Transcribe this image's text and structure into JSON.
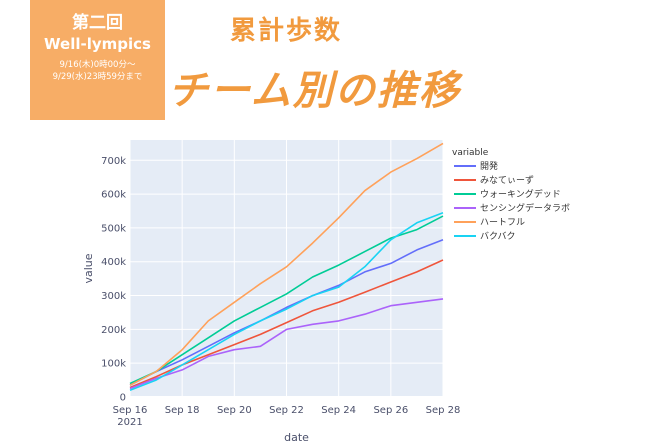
{
  "badge": {
    "title": "第二回",
    "subtitle": "Well-lympics",
    "date_line1": "9/16(木)0時00分〜",
    "date_line2": "9/29(水)23時59分まで"
  },
  "headline": {
    "line1": "累計歩数",
    "line2": "チーム別の推移"
  },
  "colors": {
    "accent": "#f7ad66",
    "headline": "#f19a3e",
    "plot_bg": "#e5ecf6"
  },
  "chart_data": {
    "type": "line",
    "xlabel": "date",
    "ylabel": "value",
    "legend_title": "variable",
    "legend_position": "right",
    "grid": true,
    "x": [
      "2021-09-16",
      "2021-09-17",
      "2021-09-18",
      "2021-09-19",
      "2021-09-20",
      "2021-09-21",
      "2021-09-22",
      "2021-09-23",
      "2021-09-24",
      "2021-09-25",
      "2021-09-26",
      "2021-09-27",
      "2021-09-28"
    ],
    "x_ticks": [
      "Sep 16",
      "Sep 18",
      "Sep 20",
      "Sep 22",
      "Sep 24",
      "Sep 26",
      "Sep 28"
    ],
    "x_tick_sub": "2021",
    "y_ticks": [
      "0",
      "100k",
      "200k",
      "300k",
      "400k",
      "500k",
      "600k",
      "700k"
    ],
    "ylim": [
      0,
      760000
    ],
    "series": [
      {
        "name": "開発",
        "color": "#636efa",
        "values": [
          35000,
          75000,
          110000,
          150000,
          190000,
          225000,
          265000,
          300000,
          330000,
          370000,
          395000,
          435000,
          465000
        ]
      },
      {
        "name": "みなてぃーず",
        "color": "#ef553b",
        "values": [
          28000,
          60000,
          95000,
          125000,
          155000,
          185000,
          220000,
          255000,
          280000,
          310000,
          340000,
          370000,
          405000
        ]
      },
      {
        "name": "ウォーキングデッド",
        "color": "#00cc96",
        "values": [
          40000,
          75000,
          125000,
          175000,
          225000,
          265000,
          305000,
          355000,
          390000,
          430000,
          470000,
          495000,
          535000
        ]
      },
      {
        "name": "センシングデータラボ",
        "color": "#ab63fa",
        "values": [
          25000,
          55000,
          80000,
          120000,
          140000,
          150000,
          200000,
          215000,
          225000,
          245000,
          270000,
          280000,
          290000
        ]
      },
      {
        "name": "ハートフル",
        "color": "#ffa15a",
        "values": [
          35000,
          75000,
          140000,
          225000,
          280000,
          335000,
          385000,
          455000,
          530000,
          610000,
          665000,
          705000,
          750000
        ]
      },
      {
        "name": "バクバク",
        "color": "#19d3f3",
        "values": [
          20000,
          50000,
          95000,
          140000,
          185000,
          225000,
          260000,
          300000,
          325000,
          385000,
          465000,
          515000,
          545000
        ]
      }
    ]
  }
}
